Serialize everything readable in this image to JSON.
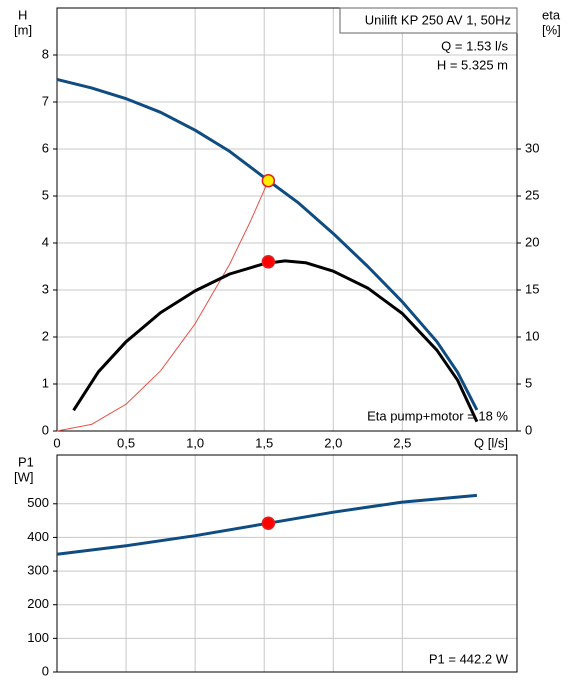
{
  "chart_data": [
    {
      "type": "line",
      "title": "Unilift KP 250 AV 1, 50Hz",
      "annotations": [
        "Q = 1.53 l/s",
        "H = 5.325 m",
        "Eta pump+motor = 18 %"
      ],
      "ylabel": "H",
      "yunit": "[m]",
      "y2label": "eta",
      "y2unit": "[%]",
      "xlabel": "Q [l/s]",
      "xlim": [
        0,
        3.33
      ],
      "xticks": [
        0,
        {
          "value": 0.5,
          "label": "0,5"
        },
        {
          "value": 1,
          "label": "1,0"
        },
        {
          "value": 1.5,
          "label": "1,5"
        },
        {
          "value": 2,
          "label": "2,0"
        },
        {
          "value": 2.5,
          "label": "2,5"
        }
      ],
      "ylim": [
        0,
        9
      ],
      "yticks": [
        0,
        1,
        2,
        3,
        4,
        5,
        6,
        7,
        8
      ],
      "y2lim": [
        0,
        45
      ],
      "y2ticks": [
        0,
        5,
        10,
        15,
        20,
        25,
        30
      ],
      "grid": true,
      "series": [
        {
          "color": "#0f4c81",
          "x": [
            0,
            0.25,
            0.5,
            0.75,
            1.0,
            1.25,
            1.53,
            1.75,
            2.0,
            2.25,
            2.5,
            2.75,
            2.9,
            3.04
          ],
          "values": [
            7.48,
            7.3,
            7.07,
            6.78,
            6.4,
            5.95,
            5.325,
            4.85,
            4.2,
            3.5,
            2.75,
            1.9,
            1.25,
            0.45
          ]
        },
        {
          "color": "#e8524a",
          "x": [
            0,
            0.25,
            0.5,
            0.75,
            1.0,
            1.25,
            1.4,
            1.53
          ],
          "values": [
            0,
            0.14,
            0.57,
            1.28,
            2.28,
            3.55,
            4.46,
            5.325
          ]
        },
        {
          "color": "#000000",
          "axis": "y2",
          "x": [
            0.12,
            0.3,
            0.5,
            0.75,
            1.0,
            1.25,
            1.5,
            1.65,
            1.8,
            2.0,
            2.25,
            2.5,
            2.75,
            2.9,
            3.04
          ],
          "values": [
            2.2,
            6.3,
            9.5,
            12.6,
            14.9,
            16.7,
            17.8,
            18.1,
            17.9,
            17.0,
            15.2,
            12.5,
            8.6,
            5.4,
            1.0
          ]
        },
        {
          "type": "scatter",
          "color": "#ffee00",
          "x": [
            1.53
          ],
          "values": [
            5.325
          ]
        },
        {
          "type": "scatter",
          "color": "#ff0000",
          "axis": "y2",
          "x": [
            1.53
          ],
          "values": [
            18
          ]
        }
      ]
    },
    {
      "type": "line",
      "ylabel": "P1",
      "yunit": "[W]",
      "annotations": [
        "P1 = 442.2 W"
      ],
      "xlim": [
        0,
        3.33
      ],
      "xticks": [
        0,
        0.5,
        1,
        1.5,
        2,
        2.5
      ],
      "ylim": [
        0,
        645
      ],
      "yticks": [
        0,
        100,
        200,
        300,
        400,
        500
      ],
      "grid": true,
      "series": [
        {
          "color": "#0f4c81",
          "x": [
            0,
            0.5,
            1.0,
            1.53,
            2.0,
            2.5,
            3.04
          ],
          "values": [
            350,
            375,
            405,
            442.2,
            475,
            505,
            525
          ]
        },
        {
          "type": "scatter",
          "color": "#ff0000",
          "x": [
            1.53
          ],
          "values": [
            442.2
          ]
        }
      ]
    }
  ]
}
